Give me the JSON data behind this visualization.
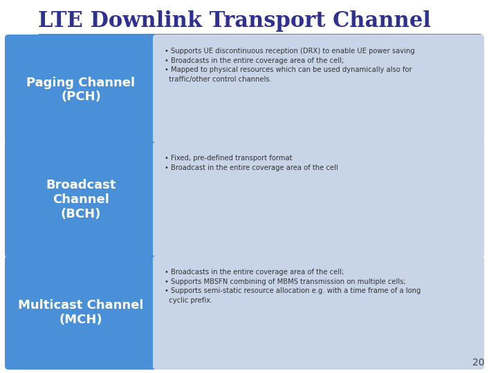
{
  "title": "LTE Downlink Transport Channel",
  "title_color": "#2E3191",
  "title_fontsize": 22,
  "separator_color": "#00A550",
  "background_color": "#FFFFFF",
  "page_number": "20",
  "boxes": [
    {
      "label": "Paging Channel\n(PCH)",
      "label_color": "#FFFFFF",
      "box_color": "#4A90D9",
      "desc": "• Supports UE discontinuous reception (DRX) to enable UE power saving\n• Broadcasts in the entire coverage area of the cell;\n• Mapped to physical resources which can be used dynamically also for\n  traffic/other control channels.",
      "desc_box_color": "#C8D5E8"
    },
    {
      "label": "Broadcast\nChannel\n(BCH)",
      "label_color": "#FFFFFF",
      "box_color": "#4A90D9",
      "desc": "• Fixed, pre-defined transport format\n• Broadcast in the entire coverage area of the cell",
      "desc_box_color": "#C8D5E8"
    },
    {
      "label": "Multicast Channel\n(MCH)",
      "label_color": "#FFFFFF",
      "box_color": "#4A90D9",
      "desc": "• Broadcasts in the entire coverage area of the cell;\n• Supports MBSFN combining of MBMS transmission on multiple cells;\n• Supports semi-static resource allocation e.g. with a time frame of a long\n  cyclic prefix.",
      "desc_box_color": "#C8D5E8"
    }
  ]
}
